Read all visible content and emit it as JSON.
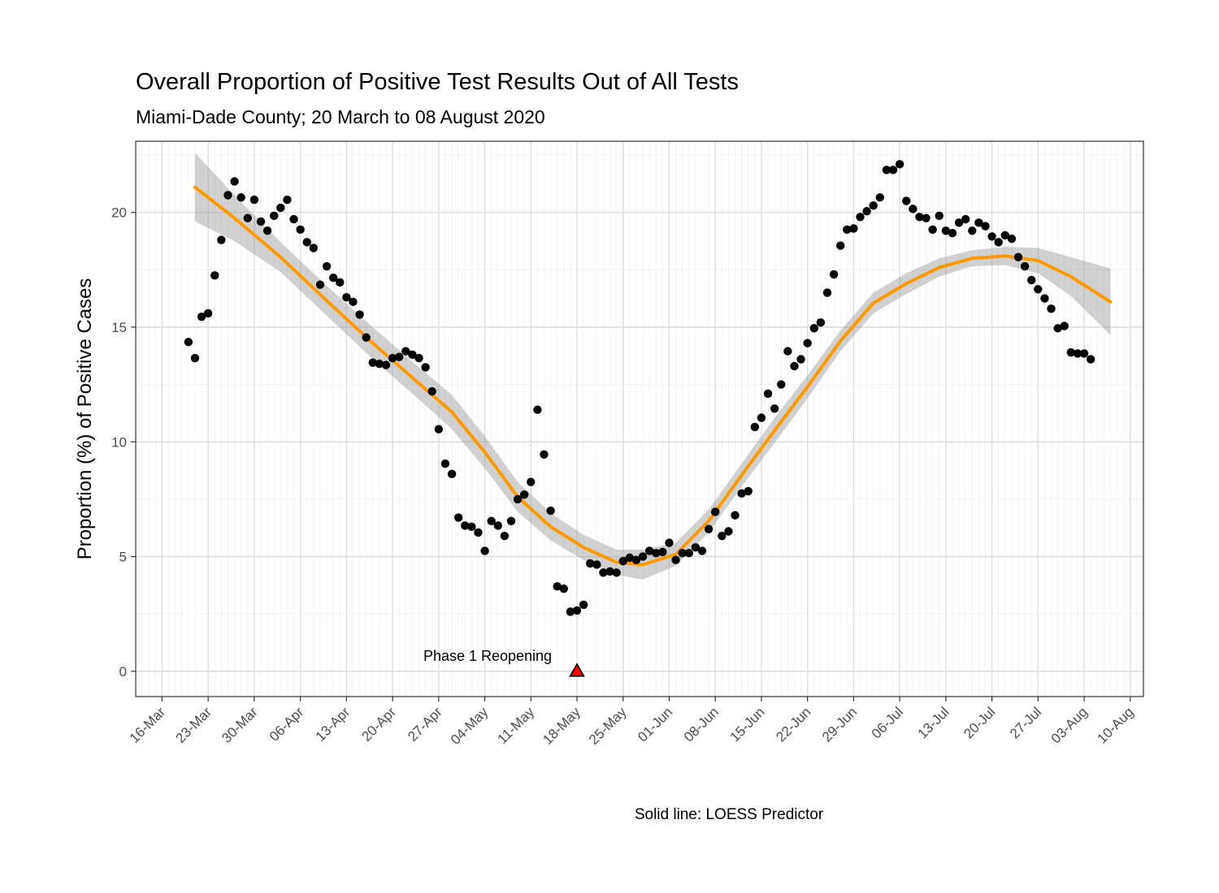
{
  "chart_data": {
    "type": "scatter",
    "title": "Overall Proportion of Positive Test Results Out of All Tests",
    "subtitle": "Miami-Dade County; 20 March to 08 August 2020",
    "xlabel": "",
    "ylabel": "Proportion (%) of Positive Cases",
    "caption": "Solid line: LOESS Predictor",
    "x_scale": "date",
    "xlim": [
      "2020-03-12",
      "2020-08-12"
    ],
    "ylim": [
      -1.1,
      23.1
    ],
    "x_ticks": [
      "2020-03-16",
      "2020-03-23",
      "2020-03-30",
      "2020-04-06",
      "2020-04-13",
      "2020-04-20",
      "2020-04-27",
      "2020-05-04",
      "2020-05-11",
      "2020-05-18",
      "2020-05-25",
      "2020-06-01",
      "2020-06-08",
      "2020-06-15",
      "2020-06-22",
      "2020-06-29",
      "2020-07-06",
      "2020-07-13",
      "2020-07-20",
      "2020-07-27",
      "2020-08-03",
      "2020-08-10"
    ],
    "x_tick_labels": [
      "16-Mar",
      "23-Mar",
      "30-Mar",
      "06-Apr",
      "13-Apr",
      "20-Apr",
      "27-Apr",
      "04-May",
      "11-May",
      "18-May",
      "25-May",
      "01-Jun",
      "08-Jun",
      "15-Jun",
      "22-Jun",
      "29-Jun",
      "06-Jul",
      "13-Jul",
      "20-Jul",
      "27-Jul",
      "03-Aug",
      "10-Aug"
    ],
    "y_ticks": [
      0,
      5,
      10,
      15,
      20
    ],
    "y_tick_labels": [
      "0",
      "5",
      "10",
      "15",
      "20"
    ],
    "grid": true,
    "points": {
      "start_date": "2020-03-20",
      "y": [
        14.35,
        13.65,
        15.45,
        15.6,
        17.25,
        18.8,
        20.75,
        21.35,
        20.65,
        19.75,
        20.55,
        19.6,
        19.2,
        19.85,
        20.2,
        20.55,
        19.7,
        19.25,
        18.7,
        18.45,
        16.85,
        17.65,
        17.15,
        16.95,
        16.3,
        16.1,
        15.55,
        14.55,
        13.45,
        13.4,
        13.35,
        13.65,
        13.7,
        13.95,
        13.8,
        13.65,
        13.25,
        12.2,
        10.55,
        9.05,
        8.6,
        6.7,
        6.35,
        6.3,
        6.05,
        5.25,
        6.55,
        6.35,
        5.9,
        6.55,
        7.5,
        7.7,
        8.25,
        11.4,
        9.45,
        7.0,
        3.7,
        3.6,
        2.6,
        2.65,
        2.9,
        4.7,
        4.65,
        4.3,
        4.35,
        4.3,
        4.8,
        4.95,
        4.85,
        5.0,
        5.25,
        5.15,
        5.2,
        5.6,
        4.85,
        5.15,
        5.15,
        5.4,
        5.25,
        6.2,
        6.95,
        5.9,
        6.1,
        6.8,
        7.75,
        7.85,
        10.65,
        11.05,
        12.1,
        11.45,
        12.5,
        13.95,
        13.3,
        13.6,
        14.3,
        14.95,
        15.2,
        16.5,
        17.3,
        18.55,
        19.25,
        19.3,
        19.8,
        20.05,
        20.3,
        20.65,
        21.85,
        21.85,
        22.1,
        20.5,
        20.15,
        19.8,
        19.75,
        19.25,
        19.85,
        19.2,
        19.1,
        19.55,
        19.7,
        19.2,
        19.55,
        19.4,
        18.95,
        18.7,
        19.0,
        18.85,
        18.05,
        17.65,
        17.05,
        16.65,
        16.25,
        15.8,
        14.95,
        15.05,
        13.9,
        13.85,
        13.85,
        13.6
      ]
    },
    "loess": {
      "name": "LOESS Predictor",
      "color": "#FF9900",
      "ribbon_color": "#999999",
      "x": [
        "2020-03-21",
        "2020-03-27",
        "2020-04-03",
        "2020-04-10",
        "2020-04-17",
        "2020-04-24",
        "2020-04-29",
        "2020-05-04",
        "2020-05-09",
        "2020-05-14",
        "2020-05-19",
        "2020-05-24",
        "2020-05-28",
        "2020-06-02",
        "2020-06-07",
        "2020-06-12",
        "2020-06-17",
        "2020-06-22",
        "2020-06-27",
        "2020-07-02",
        "2020-07-07",
        "2020-07-12",
        "2020-07-17",
        "2020-07-22",
        "2020-07-27",
        "2020-08-01",
        "2020-08-07"
      ],
      "y": [
        21.1,
        19.75,
        18.05,
        16.15,
        14.3,
        12.55,
        11.3,
        9.55,
        7.6,
        6.3,
        5.4,
        4.75,
        4.65,
        5.1,
        6.55,
        8.55,
        10.5,
        12.4,
        14.4,
        16.05,
        16.9,
        17.6,
        18.0,
        18.1,
        17.9,
        17.2,
        16.1
      ],
      "lower": [
        19.6,
        18.75,
        17.4,
        15.5,
        13.6,
        11.85,
        10.55,
        8.85,
        6.95,
        5.7,
        4.85,
        4.2,
        4.0,
        4.6,
        6.05,
        8.05,
        9.95,
        11.9,
        13.95,
        15.6,
        16.45,
        17.2,
        17.65,
        17.7,
        17.35,
        16.35,
        14.65
      ],
      "upper": [
        22.6,
        20.75,
        18.7,
        16.8,
        15.0,
        13.25,
        12.05,
        10.25,
        8.25,
        6.9,
        5.95,
        5.3,
        5.3,
        5.6,
        7.05,
        9.05,
        11.05,
        12.9,
        14.85,
        16.5,
        17.35,
        18.0,
        18.35,
        18.5,
        18.45,
        18.05,
        17.55
      ]
    },
    "annotation": {
      "label": "Phase 1 Reopening",
      "x": "2020-05-18",
      "y": 0,
      "marker": "triangle",
      "marker_color": "#FF0000"
    }
  }
}
